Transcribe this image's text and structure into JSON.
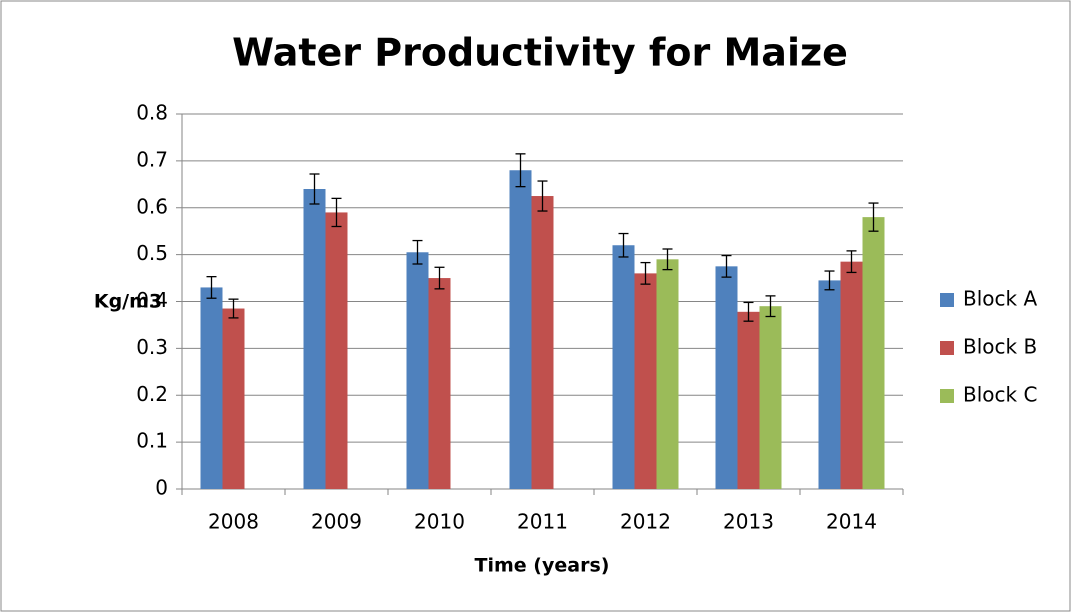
{
  "chart_data": {
    "type": "bar",
    "title": "Water Productivity for Maize",
    "x_label": "Time (years)",
    "y_label": "Kg/m3",
    "categories": [
      "2008",
      "2009",
      "2010",
      "2011",
      "2012",
      "2013",
      "2014"
    ],
    "series": [
      {
        "name": "Block A",
        "color": "#4f81bd",
        "values": [
          0.43,
          0.64,
          0.505,
          0.68,
          0.52,
          0.475,
          0.445
        ],
        "errors": [
          0.023,
          0.032,
          0.025,
          0.035,
          0.025,
          0.023,
          0.02
        ]
      },
      {
        "name": "Block B",
        "color": "#c0504d",
        "values": [
          0.385,
          0.59,
          0.45,
          0.625,
          0.46,
          0.378,
          0.485
        ],
        "errors": [
          0.02,
          0.03,
          0.023,
          0.032,
          0.023,
          0.02,
          0.023
        ]
      },
      {
        "name": "Block C",
        "color": "#9bbb59",
        "values": [
          null,
          null,
          null,
          null,
          0.49,
          0.39,
          0.58
        ],
        "errors": [
          null,
          null,
          null,
          null,
          0.022,
          0.022,
          0.03
        ]
      }
    ],
    "ylim": [
      0,
      0.8
    ],
    "yticks": [
      0,
      0.1,
      0.2,
      0.3,
      0.4,
      0.5,
      0.6,
      0.7,
      0.8
    ],
    "grid": true,
    "legend": "right"
  }
}
